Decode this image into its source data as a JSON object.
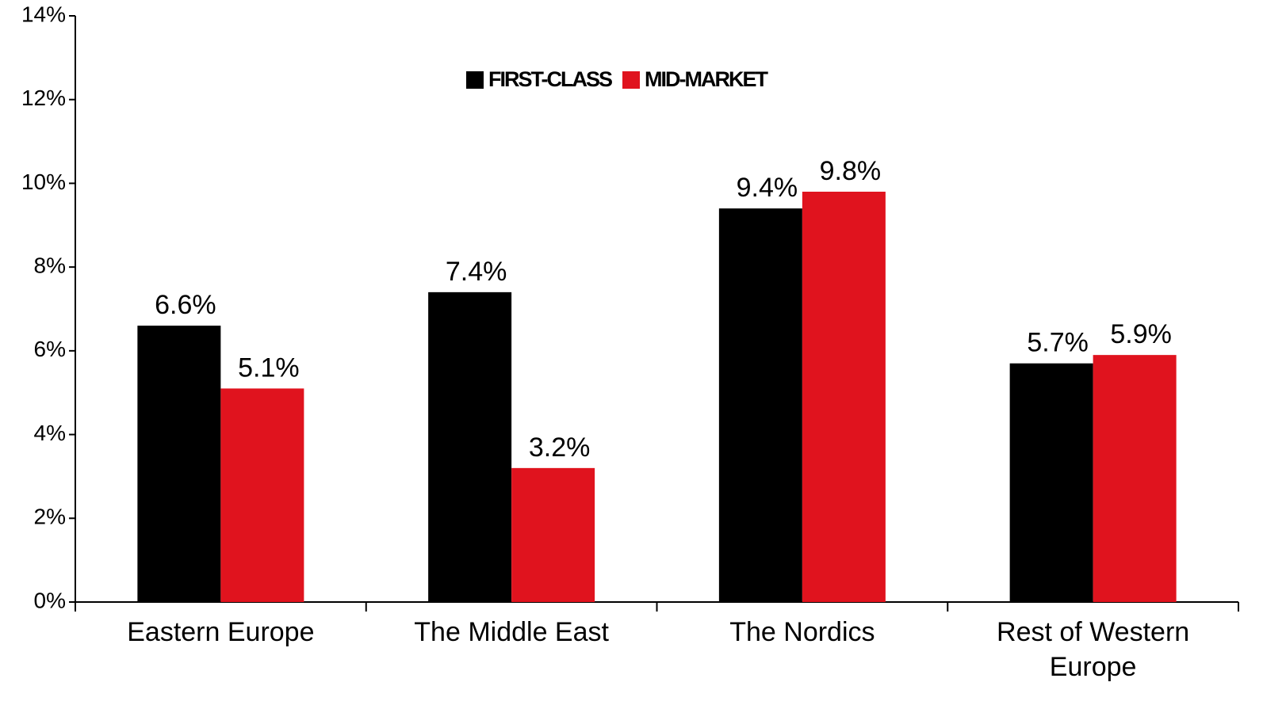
{
  "chart_data": {
    "type": "bar",
    "categories": [
      "Eastern Europe",
      "The Middle East",
      "The Nordics",
      "Rest of Western Europe"
    ],
    "series": [
      {
        "name": "FIRST-CLASS",
        "color": "#000000",
        "values": [
          6.6,
          7.4,
          9.4,
          5.7
        ],
        "value_labels": [
          "6.6%",
          "7.4%",
          "9.4%",
          "5.7%"
        ]
      },
      {
        "name": "MID-MARKET",
        "color": "#e0131e",
        "values": [
          5.1,
          3.2,
          9.8,
          5.9
        ],
        "value_labels": [
          "5.1%",
          "3.2%",
          "9.8%",
          "5.9%"
        ]
      }
    ],
    "ylim": [
      0,
      14
    ],
    "yticks": [
      {
        "value": 0,
        "label": "0%"
      },
      {
        "value": 2,
        "label": "2%"
      },
      {
        "value": 4,
        "label": "4%"
      },
      {
        "value": 6,
        "label": "6%"
      },
      {
        "value": 8,
        "label": "8%"
      },
      {
        "value": 10,
        "label": "10%"
      },
      {
        "value": 12,
        "label": "12%"
      },
      {
        "value": 14,
        "label": "14%"
      }
    ],
    "legend": "top"
  }
}
